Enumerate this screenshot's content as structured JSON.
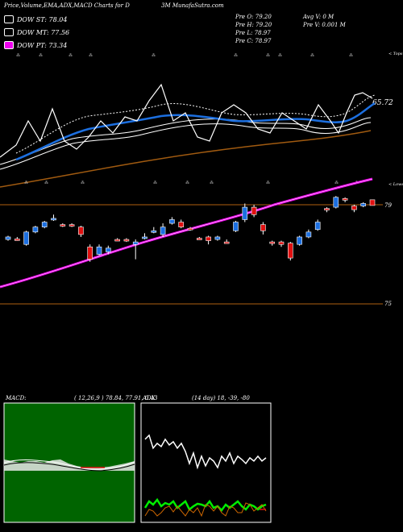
{
  "header": {
    "title_left": "Price,Volume,EMA,ADX,MACD Charts for D",
    "title_right": "3M MunafaSutra.com"
  },
  "legends": [
    {
      "label": "DOW ST: 78.04",
      "color": "#000000"
    },
    {
      "label": "DOW MT: 77.56",
      "color": "#000000"
    },
    {
      "label": "DOW PT: 73.34",
      "color": "#ee00ee"
    }
  ],
  "ohlc": {
    "open": "Pre  O: 79.20",
    "high": "Pre  H: 79.20",
    "low": "Pre  L: 78.97",
    "close": "Pre  C: 78.97",
    "avg_vol": "Avg V: 0  M",
    "pre_vol": "Pre  V: 0.001 M"
  },
  "upper_panel": {
    "top_tag": "< Tops",
    "lower_tag": "< Lower",
    "value_label": "65.72"
  },
  "price_panel": {
    "level_high": "79",
    "level_low": "75"
  },
  "macd": {
    "label": "MACD:",
    "values": "( 12,26,9 ) 78.84,  77.91,  0.43"
  },
  "adx": {
    "label": "ADX",
    "values": "(14  day) 18,  -39,  -80"
  },
  "colors": {
    "up": "#1c6fe0",
    "down": "#e01010",
    "ema_pink": "#ee00ee",
    "level_line": "#b06010",
    "macd_green": "#006400",
    "adx_green": "#00ee00",
    "adx_orange": "#cc6600"
  },
  "chart_data": {
    "type": "candlestick",
    "y_levels": [
      79,
      75
    ],
    "candles": [
      {
        "o": 77.7,
        "h": 77.75,
        "l": 77.55,
        "c": 77.6,
        "d": "up"
      },
      {
        "o": 77.6,
        "h": 77.7,
        "l": 77.55,
        "c": 77.62,
        "d": "down"
      },
      {
        "o": 77.4,
        "h": 77.95,
        "l": 77.35,
        "c": 77.9,
        "d": "up"
      },
      {
        "o": 77.9,
        "h": 78.15,
        "l": 77.85,
        "c": 78.1,
        "d": "up"
      },
      {
        "o": 78.1,
        "h": 78.35,
        "l": 78.05,
        "c": 78.3,
        "d": "up"
      },
      {
        "o": 78.4,
        "h": 78.6,
        "l": 78.35,
        "c": 78.45,
        "d": "up"
      },
      {
        "o": 78.2,
        "h": 78.25,
        "l": 78.1,
        "c": 78.15,
        "d": "down"
      },
      {
        "o": 78.2,
        "h": 78.25,
        "l": 78.1,
        "c": 78.15,
        "d": "down"
      },
      {
        "o": 78.1,
        "h": 78.15,
        "l": 77.7,
        "c": 77.8,
        "d": "down"
      },
      {
        "o": 77.3,
        "h": 77.4,
        "l": 76.7,
        "c": 76.8,
        "d": "down"
      },
      {
        "o": 77.3,
        "h": 77.4,
        "l": 76.95,
        "c": 77.0,
        "d": "up"
      },
      {
        "o": 77.25,
        "h": 77.35,
        "l": 77.0,
        "c": 77.1,
        "d": "up"
      },
      {
        "o": 77.6,
        "h": 77.65,
        "l": 77.55,
        "c": 77.6,
        "d": "down"
      },
      {
        "o": 77.55,
        "h": 77.65,
        "l": 77.5,
        "c": 77.6,
        "d": "down"
      },
      {
        "o": 77.4,
        "h": 77.6,
        "l": 76.8,
        "c": 77.5,
        "d": "up"
      },
      {
        "o": 77.7,
        "h": 77.85,
        "l": 77.6,
        "c": 77.65,
        "d": "up"
      },
      {
        "o": 77.9,
        "h": 78.1,
        "l": 77.85,
        "c": 77.95,
        "d": "up"
      },
      {
        "o": 77.8,
        "h": 78.25,
        "l": 77.7,
        "c": 78.1,
        "d": "up"
      },
      {
        "o": 78.25,
        "h": 78.5,
        "l": 78.2,
        "c": 78.4,
        "d": "up"
      },
      {
        "o": 78.3,
        "h": 78.4,
        "l": 78.05,
        "c": 78.1,
        "d": "down"
      },
      {
        "o": 78.05,
        "h": 78.1,
        "l": 77.95,
        "c": 78.0,
        "d": "down"
      },
      {
        "o": 77.65,
        "h": 77.7,
        "l": 77.6,
        "c": 77.65,
        "d": "down"
      },
      {
        "o": 77.55,
        "h": 77.75,
        "l": 77.4,
        "c": 77.7,
        "d": "down"
      },
      {
        "o": 77.6,
        "h": 77.75,
        "l": 77.55,
        "c": 77.7,
        "d": "up"
      },
      {
        "o": 77.5,
        "h": 77.6,
        "l": 77.45,
        "c": 77.5,
        "d": "down"
      },
      {
        "o": 77.95,
        "h": 78.35,
        "l": 77.9,
        "c": 78.3,
        "d": "up"
      },
      {
        "o": 78.4,
        "h": 79.05,
        "l": 78.3,
        "c": 78.9,
        "d": "up"
      },
      {
        "o": 78.9,
        "h": 79.0,
        "l": 78.5,
        "c": 78.6,
        "d": "down"
      },
      {
        "o": 78.2,
        "h": 78.3,
        "l": 77.8,
        "c": 77.95,
        "d": "down"
      },
      {
        "o": 77.5,
        "h": 77.55,
        "l": 77.35,
        "c": 77.45,
        "d": "down"
      },
      {
        "o": 77.5,
        "h": 77.55,
        "l": 77.3,
        "c": 77.4,
        "d": "down"
      },
      {
        "o": 77.45,
        "h": 77.5,
        "l": 76.75,
        "c": 76.85,
        "d": "down"
      },
      {
        "o": 77.4,
        "h": 77.75,
        "l": 77.35,
        "c": 77.7,
        "d": "up"
      },
      {
        "o": 77.7,
        "h": 78.0,
        "l": 77.65,
        "c": 77.9,
        "d": "up"
      },
      {
        "o": 78.0,
        "h": 78.4,
        "l": 77.95,
        "c": 78.3,
        "d": "up"
      },
      {
        "o": 78.8,
        "h": 78.9,
        "l": 78.7,
        "c": 78.85,
        "d": "down"
      },
      {
        "o": 78.9,
        "h": 79.35,
        "l": 78.85,
        "c": 79.3,
        "d": "up"
      },
      {
        "o": 79.2,
        "h": 79.3,
        "l": 79.1,
        "c": 79.25,
        "d": "down"
      },
      {
        "o": 78.8,
        "h": 79.0,
        "l": 78.7,
        "c": 78.95,
        "d": "down"
      },
      {
        "o": 78.95,
        "h": 79.1,
        "l": 78.9,
        "c": 79.05,
        "d": "up"
      },
      {
        "o": 79.2,
        "h": 79.2,
        "l": 78.97,
        "c": 78.97,
        "d": "down"
      }
    ]
  }
}
